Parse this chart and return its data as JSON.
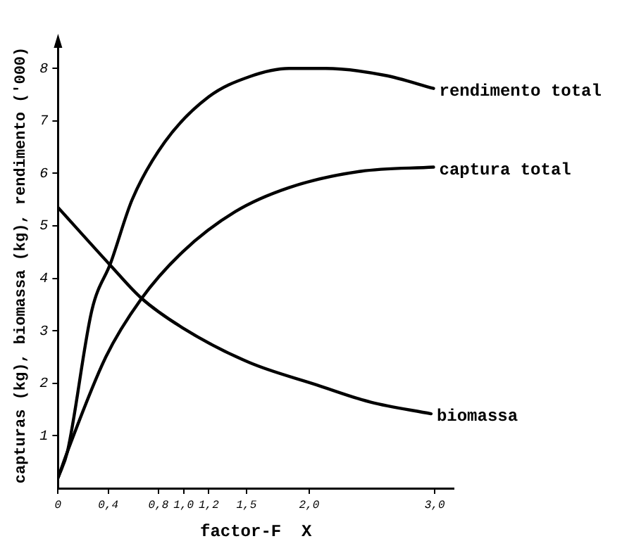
{
  "chart_data": {
    "type": "line",
    "xlabel": "factor-F  X",
    "ylabel": "capturas (kg), biomassa (kg), rendimento ('000)",
    "xlim": [
      0,
      3.15
    ],
    "ylim": [
      0,
      8.5
    ],
    "xticks": [
      {
        "value": 0,
        "label": "0"
      },
      {
        "value": 0.4,
        "label": "0,4"
      },
      {
        "value": 0.8,
        "label": "0,8"
      },
      {
        "value": 1,
        "label": "1,0"
      },
      {
        "value": 1.2,
        "label": "1,2"
      },
      {
        "value": 1.5,
        "label": "1,5"
      },
      {
        "value": 2,
        "label": "2,0"
      },
      {
        "value": 3,
        "label": "3,0"
      }
    ],
    "yticks": [
      1,
      2,
      3,
      4,
      5,
      6,
      7,
      8
    ],
    "grid": false,
    "legend": false,
    "marker": "none",
    "line_style": "solid",
    "series": [
      {
        "name": "rendimento total",
        "color": "#000000",
        "x": [
          0,
          0.075,
          0.27,
          0.42,
          0.59,
          0.85,
          1.2,
          1.52,
          1.84,
          2.13,
          2.6,
          2.99
        ],
        "values": [
          0.2,
          0.7,
          3.4,
          4.3,
          5.5,
          6.6,
          7.46,
          7.84,
          8.0,
          8.0,
          7.87,
          7.62
        ]
      },
      {
        "name": "captura total",
        "color": "#000000",
        "x": [
          0,
          0.075,
          0.38,
          0.66,
          0.99,
          1.41,
          1.84,
          2.41,
          2.99
        ],
        "values": [
          0.2,
          0.7,
          2.5,
          3.6,
          4.5,
          5.27,
          5.73,
          6.04,
          6.12
        ]
      },
      {
        "name": "biomassa",
        "color": "#000000",
        "x": [
          0,
          0.42,
          0.66,
          0.99,
          1.52,
          2.06,
          2.49,
          2.97
        ],
        "values": [
          5.35,
          4.24,
          3.63,
          3.06,
          2.4,
          1.97,
          1.64,
          1.42
        ]
      }
    ]
  }
}
